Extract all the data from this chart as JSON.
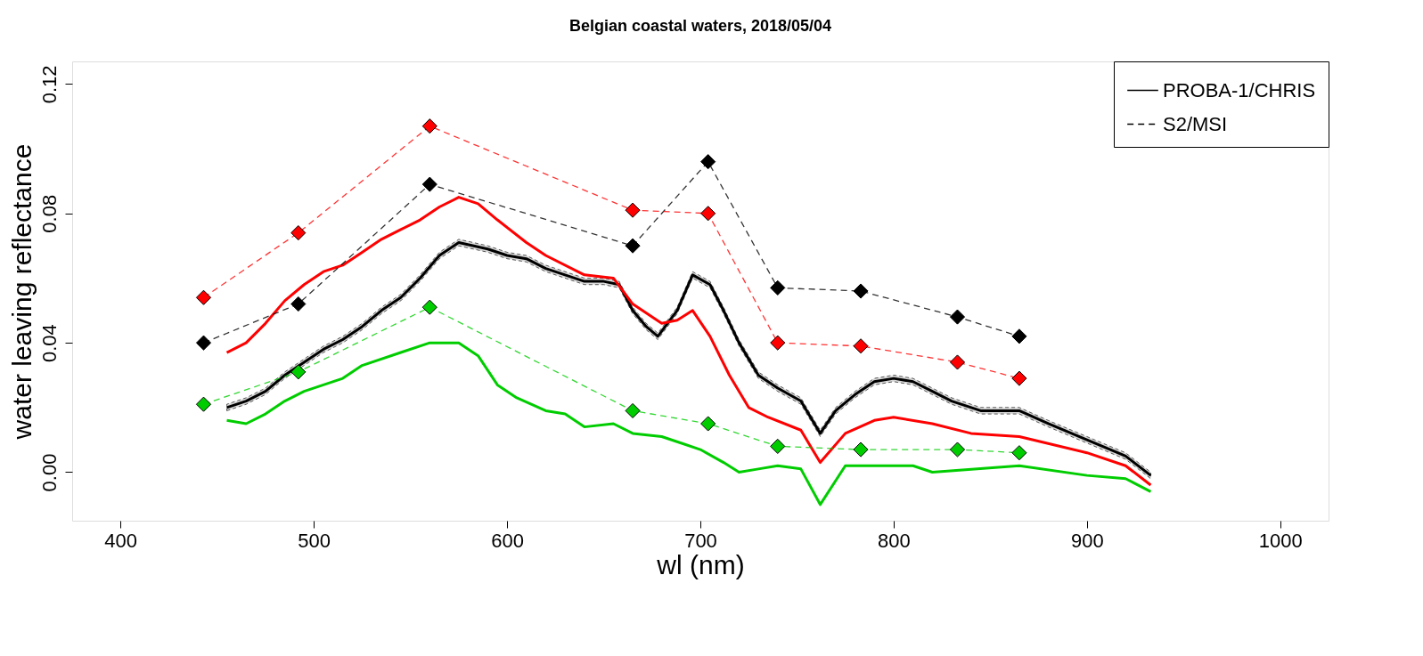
{
  "chart_data": {
    "type": "line",
    "title": "Belgian coastal waters, 2018/05/04",
    "xlabel": "wl (nm)",
    "ylabel": "water leaving reflectance",
    "xlim": [
      375,
      1025
    ],
    "xticks": [
      400,
      500,
      600,
      700,
      800,
      900,
      1000
    ],
    "ylim": [
      -0.015,
      0.127
    ],
    "yticks": [
      {
        "value": 0,
        "label": "0.00"
      },
      {
        "value": 0.04,
        "label": "0.04"
      },
      {
        "value": 0.08,
        "label": "0.08"
      },
      {
        "value": 0.12,
        "label": "0.12"
      }
    ],
    "grid": false,
    "legend": "top right",
    "series": [
      {
        "name": "PROBA-1/CHRIS",
        "color": "#000000",
        "line_style": "solid",
        "marker": "none",
        "x": [
          455,
          465,
          475,
          485,
          495,
          505,
          515,
          525,
          535,
          545,
          555,
          565,
          575,
          590,
          600,
          610,
          620,
          640,
          650,
          658,
          665,
          672,
          678,
          688,
          696,
          705,
          712,
          720,
          730,
          740,
          752,
          762,
          770,
          780,
          790,
          800,
          810,
          820,
          830,
          845,
          865,
          880,
          900,
          920,
          933
        ],
        "values": [
          0.02,
          0.022,
          0.025,
          0.03,
          0.034,
          0.038,
          0.041,
          0.045,
          0.05,
          0.054,
          0.06,
          0.067,
          0.071,
          0.069,
          0.067,
          0.066,
          0.063,
          0.059,
          0.059,
          0.058,
          0.05,
          0.045,
          0.042,
          0.05,
          0.061,
          0.058,
          0.05,
          0.04,
          0.03,
          0.026,
          0.022,
          0.012,
          0.019,
          0.024,
          0.028,
          0.029,
          0.028,
          0.025,
          0.022,
          0.019,
          0.019,
          0.015,
          0.01,
          0.005,
          -0.001
        ],
        "lower": [
          0.019,
          0.021,
          0.024,
          0.029,
          0.033,
          0.037,
          0.04,
          0.044,
          0.049,
          0.053,
          0.059,
          0.066,
          0.07,
          0.068,
          0.066,
          0.065,
          0.062,
          0.058,
          0.058,
          0.057,
          0.049,
          0.044,
          0.041,
          0.049,
          0.06,
          0.057,
          0.049,
          0.039,
          0.029,
          0.025,
          0.021,
          0.011,
          0.018,
          0.023,
          0.027,
          0.028,
          0.027,
          0.024,
          0.021,
          0.018,
          0.018,
          0.014,
          0.009,
          0.004,
          -0.002
        ],
        "upper": [
          0.021,
          0.023,
          0.026,
          0.031,
          0.035,
          0.039,
          0.042,
          0.046,
          0.051,
          0.055,
          0.061,
          0.068,
          0.072,
          0.07,
          0.068,
          0.067,
          0.064,
          0.06,
          0.06,
          0.059,
          0.051,
          0.046,
          0.043,
          0.051,
          0.062,
          0.059,
          0.051,
          0.041,
          0.031,
          0.027,
          0.023,
          0.013,
          0.02,
          0.025,
          0.029,
          0.03,
          0.029,
          0.026,
          0.023,
          0.02,
          0.02,
          0.016,
          0.011,
          0.006,
          0.0
        ]
      },
      {
        "color": "#ff0000",
        "line_style": "solid",
        "marker": "none",
        "x": [
          455,
          465,
          475,
          485,
          495,
          505,
          515,
          525,
          535,
          545,
          555,
          565,
          575,
          585,
          595,
          610,
          620,
          640,
          655,
          665,
          680,
          688,
          696,
          705,
          715,
          725,
          735,
          752,
          762,
          775,
          790,
          800,
          820,
          840,
          865,
          900,
          920,
          933
        ],
        "values": [
          0.037,
          0.04,
          0.046,
          0.053,
          0.058,
          0.062,
          0.064,
          0.068,
          0.072,
          0.075,
          0.078,
          0.082,
          0.085,
          0.083,
          0.078,
          0.071,
          0.067,
          0.061,
          0.06,
          0.052,
          0.046,
          0.047,
          0.05,
          0.042,
          0.03,
          0.02,
          0.017,
          0.013,
          0.003,
          0.012,
          0.016,
          0.017,
          0.015,
          0.012,
          0.011,
          0.006,
          0.002,
          -0.004
        ]
      },
      {
        "color": "#00cd00",
        "line_style": "solid",
        "marker": "none",
        "x": [
          455,
          465,
          475,
          485,
          495,
          505,
          515,
          525,
          545,
          560,
          575,
          585,
          595,
          605,
          620,
          630,
          640,
          655,
          665,
          680,
          690,
          700,
          712,
          720,
          730,
          740,
          752,
          762,
          775,
          800,
          810,
          820,
          865,
          900,
          920,
          933
        ],
        "values": [
          0.016,
          0.015,
          0.018,
          0.022,
          0.025,
          0.027,
          0.029,
          0.033,
          0.037,
          0.04,
          0.04,
          0.036,
          0.027,
          0.023,
          0.019,
          0.018,
          0.014,
          0.015,
          0.012,
          0.011,
          0.009,
          0.007,
          0.003,
          0.0,
          0.001,
          0.002,
          0.001,
          -0.01,
          0.002,
          0.002,
          0.002,
          0.0,
          0.002,
          -0.001,
          -0.002,
          -0.006
        ]
      },
      {
        "name": "S2/MSI",
        "color": "#000000",
        "line_style": "dashed",
        "marker": "diamond",
        "x": [
          443,
          492,
          560,
          665,
          704,
          740,
          783,
          833,
          865
        ],
        "values": [
          0.04,
          0.052,
          0.089,
          0.07,
          0.096,
          0.057,
          0.056,
          0.048,
          0.042
        ]
      },
      {
        "color": "#ff0000",
        "line_style": "dashed",
        "marker": "diamond",
        "x": [
          443,
          492,
          560,
          665,
          704,
          740,
          783,
          833,
          865
        ],
        "values": [
          0.054,
          0.074,
          0.107,
          0.081,
          0.08,
          0.04,
          0.039,
          0.034,
          0.029
        ]
      },
      {
        "color": "#00cd00",
        "line_style": "dashed",
        "marker": "diamond",
        "x": [
          443,
          492,
          560,
          665,
          704,
          740,
          783,
          833,
          865
        ],
        "values": [
          0.021,
          0.031,
          0.051,
          0.019,
          0.015,
          0.008,
          0.007,
          0.007,
          0.006
        ]
      }
    ]
  }
}
